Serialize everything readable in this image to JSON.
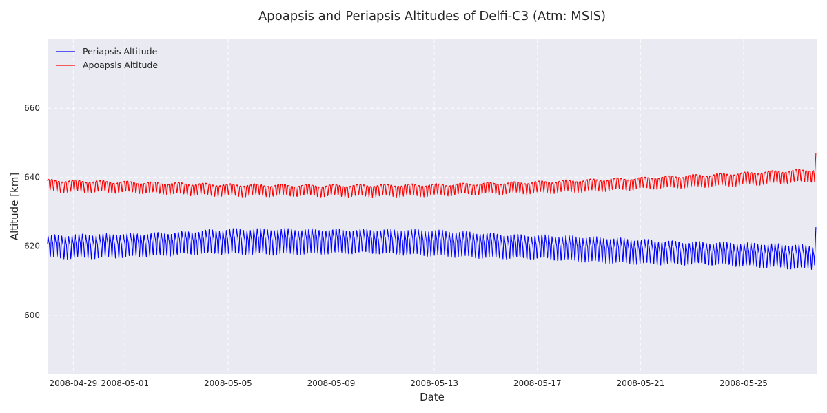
{
  "chart_data": {
    "type": "line",
    "title": "Apoapsis and Periapsis Altitudes of Delfi-C3 (Atm: MSIS)",
    "xlabel": "Date",
    "ylabel": "Altitude [km]",
    "xlim": [
      "2008-04-28",
      "2008-05-27T20:00"
    ],
    "ylim": [
      583,
      680
    ],
    "x_ticks": [
      "2008-04-29",
      "2008-05-01",
      "2008-05-05",
      "2008-05-09",
      "2008-05-13",
      "2008-05-17",
      "2008-05-21",
      "2008-05-25"
    ],
    "y_ticks": [
      600,
      620,
      640,
      660
    ],
    "grid": true,
    "legend_position": "top-left",
    "oscillation_period_days": 0.133,
    "series": [
      {
        "name": "Periapsis Altitude",
        "color": "#0000ff",
        "trend": [
          {
            "date": "2008-04-28",
            "mean": 620.0,
            "amplitude": 2.8
          },
          {
            "date": "2008-05-01",
            "mean": 620.6,
            "amplitude": 2.8
          },
          {
            "date": "2008-05-05",
            "mean": 621.6,
            "amplitude": 3.0
          },
          {
            "date": "2008-05-09",
            "mean": 621.8,
            "amplitude": 3.0
          },
          {
            "date": "2008-05-13",
            "mean": 621.3,
            "amplitude": 3.0
          },
          {
            "date": "2008-05-17",
            "mean": 620.0,
            "amplitude": 3.0
          },
          {
            "date": "2008-05-21",
            "mean": 618.8,
            "amplitude": 2.9
          },
          {
            "date": "2008-05-25",
            "mean": 617.8,
            "amplitude": 2.8
          },
          {
            "date": "2008-05-27T18:00",
            "mean": 617.2,
            "amplitude": 2.8
          }
        ],
        "end_value": 625.5
      },
      {
        "name": "Apoapsis Altitude",
        "color": "#ff0000",
        "trend": [
          {
            "date": "2008-04-28",
            "mean": 638.0,
            "amplitude": 1.5
          },
          {
            "date": "2008-05-01",
            "mean": 637.5,
            "amplitude": 1.5
          },
          {
            "date": "2008-05-05",
            "mean": 636.7,
            "amplitude": 1.5
          },
          {
            "date": "2008-05-09",
            "mean": 636.5,
            "amplitude": 1.5
          },
          {
            "date": "2008-05-13",
            "mean": 636.7,
            "amplitude": 1.5
          },
          {
            "date": "2008-05-17",
            "mean": 637.5,
            "amplitude": 1.5
          },
          {
            "date": "2008-05-21",
            "mean": 638.6,
            "amplitude": 1.6
          },
          {
            "date": "2008-05-25",
            "mean": 640.0,
            "amplitude": 1.6
          },
          {
            "date": "2008-05-27T18:00",
            "mean": 641.0,
            "amplitude": 1.7
          }
        ],
        "end_value": 647.0
      }
    ]
  }
}
